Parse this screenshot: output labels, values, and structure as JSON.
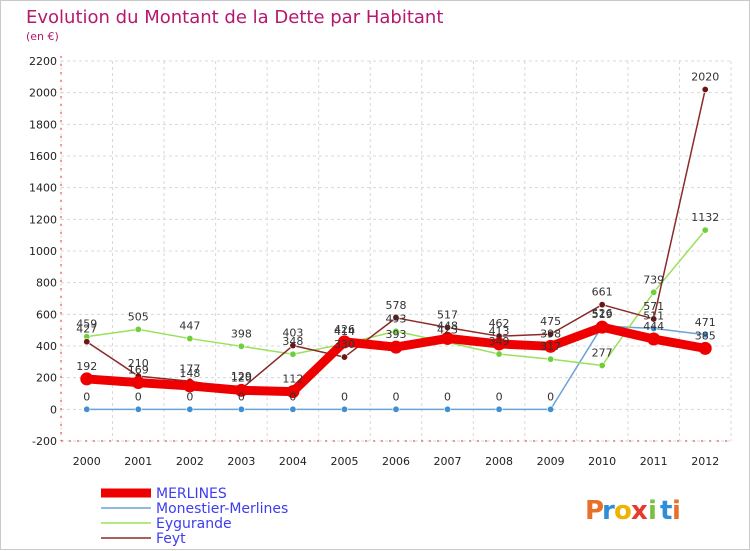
{
  "chart_data": {
    "type": "line",
    "title": "Evolution du Montant de la Dette par Habitant",
    "subtitle": "(en €)",
    "categories": [
      "2000",
      "2001",
      "2002",
      "2003",
      "2004",
      "2005",
      "2006",
      "2007",
      "2008",
      "2009",
      "2010",
      "2011",
      "2012"
    ],
    "ylim": [
      -200,
      2200
    ],
    "yticks": [
      "-200",
      "0",
      "200",
      "400",
      "600",
      "800",
      "1000",
      "1200",
      "1400",
      "1600",
      "1800",
      "2000",
      "2200"
    ],
    "ytick_values": [
      -200,
      0,
      200,
      400,
      600,
      800,
      1000,
      1200,
      1400,
      1600,
      1800,
      2000,
      2200
    ],
    "grid": true,
    "legend_position": "bottom-left",
    "series": [
      {
        "name": "Monestier-Merlines",
        "color": "#6ba3d6",
        "marker": "#3f8fd2",
        "values": [
          0,
          0,
          0,
          0,
          0,
          0,
          0,
          0,
          0,
          0,
          526,
          511,
          471
        ]
      },
      {
        "name": "Eygurande",
        "color": "#9ae05a",
        "marker": "#6fcf3a",
        "values": [
          459,
          505,
          447,
          398,
          348,
          414,
          493,
          423,
          349,
          317,
          277,
          739,
          1132
        ]
      },
      {
        "name": "Feyt",
        "color": "#8b2a2a",
        "marker": "#6b1515",
        "values": [
          427,
          210,
          177,
          129,
          403,
          330,
          578,
          517,
          462,
          475,
          661,
          571,
          2020
        ]
      },
      {
        "name": "MERLINES",
        "color": "#ee0000",
        "marker": "#ee0000",
        "values": [
          192,
          169,
          148,
          120,
          112,
          426,
          393,
          448,
          413,
          398,
          519,
          444,
          385
        ]
      }
    ],
    "legend_order": [
      "MERLINES",
      "Monestier-Merlines",
      "Eygurande",
      "Feyt"
    ]
  },
  "logo": {
    "text": "Proxiti",
    "letters": [
      "P",
      "r",
      "o",
      "x",
      "i",
      "t",
      "i"
    ],
    "colors": [
      "#e8702a",
      "#2e8fd8",
      "#f0b400",
      "#e83a2a",
      "#7ac143",
      "#2e8fd8",
      "#e8702a"
    ]
  }
}
